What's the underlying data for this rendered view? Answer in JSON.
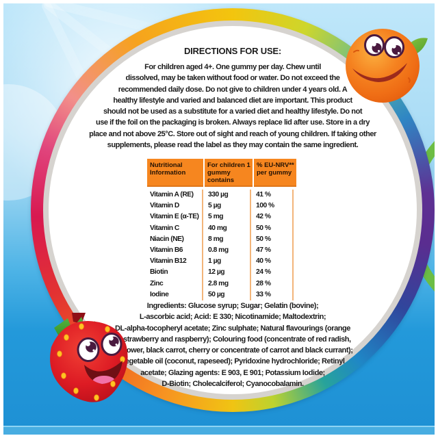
{
  "label": {
    "directions_title": "DIRECTIONS FOR USE:",
    "directions_body": "For children aged 4+. One gummy per day. Chew until\ndissolved, may be taken without food or water. Do not exceed the\nrecommended daily dose. Do not give to children under 4 years old. A\nhealthy lifestyle and varied and balanced diet are important. This product\nshould not be used as a substitute for a varied diet and healthy lifestyle. Do not\nuse if the foil on the packaging is broken. Always replace lid after use. Store in a dry\nplace and not above 25°C. Store out of sight and reach of young children. If taking other\nsupplements, please read the label as they may contain the same ingredient.",
    "ingredients": "Ingredients: Glucose syrup; Sugar; Gelatin (bovine);\nL-ascorbic acid; Acid: E 330; Nicotinamide; Maltodextrin;\nDL-alpha-tocopheryl acetate; Zinc sulphate; Natural flavourings (orange\nor strawberry and raspberry); Colouring food (concentrate of red radish,\nsafflower, black carrot, cherry or concentrate of carrot and black currant);\nVegetable oil (coconut, rapeseed); Pyridoxine hydrochloride; Retinyl\nacetate; Glazing agents: E 903, E 901; Potassium Iodide;\nD-Biotin; Cholecalciferol; Cyanocobalamin."
  },
  "nutrition_table": {
    "header": [
      "Nutritional\nInformation",
      "For children 1\ngummy contains",
      "% EU-NRV**\nper gummy"
    ],
    "rows": [
      [
        "Vitamin A (RE)",
        "330 µg",
        "41 %"
      ],
      [
        "Vitamin D",
        "5 µg",
        "100 %"
      ],
      [
        "Vitamin E (α-TE)",
        "5 mg",
        "42 %"
      ],
      [
        "Vitamin C",
        "40 mg",
        "50 %"
      ],
      [
        "Niacin (NE)",
        "8 mg",
        "50 %"
      ],
      [
        "Vitamin B6",
        "0.8 mg",
        "47 %"
      ],
      [
        "Vitamin B12",
        "1 µg",
        "40 %"
      ],
      [
        "Biotin",
        "12 µg",
        "24 %"
      ],
      [
        "Zinc",
        "2.8 mg",
        "28 %"
      ],
      [
        "Iodine",
        "50 µg",
        "33 %"
      ]
    ]
  },
  "mascots": {
    "top_right": "orange-character",
    "bottom_left": "strawberry-character"
  },
  "colors": {
    "table_header_orange": "#f6861f",
    "table_separator": "#f3b57a",
    "sky_top": "#bfe7fa",
    "sky_bottom": "#1e90d4",
    "ring_silver_rim": "#d6d3cf",
    "green_arc": "#6cbd45"
  }
}
